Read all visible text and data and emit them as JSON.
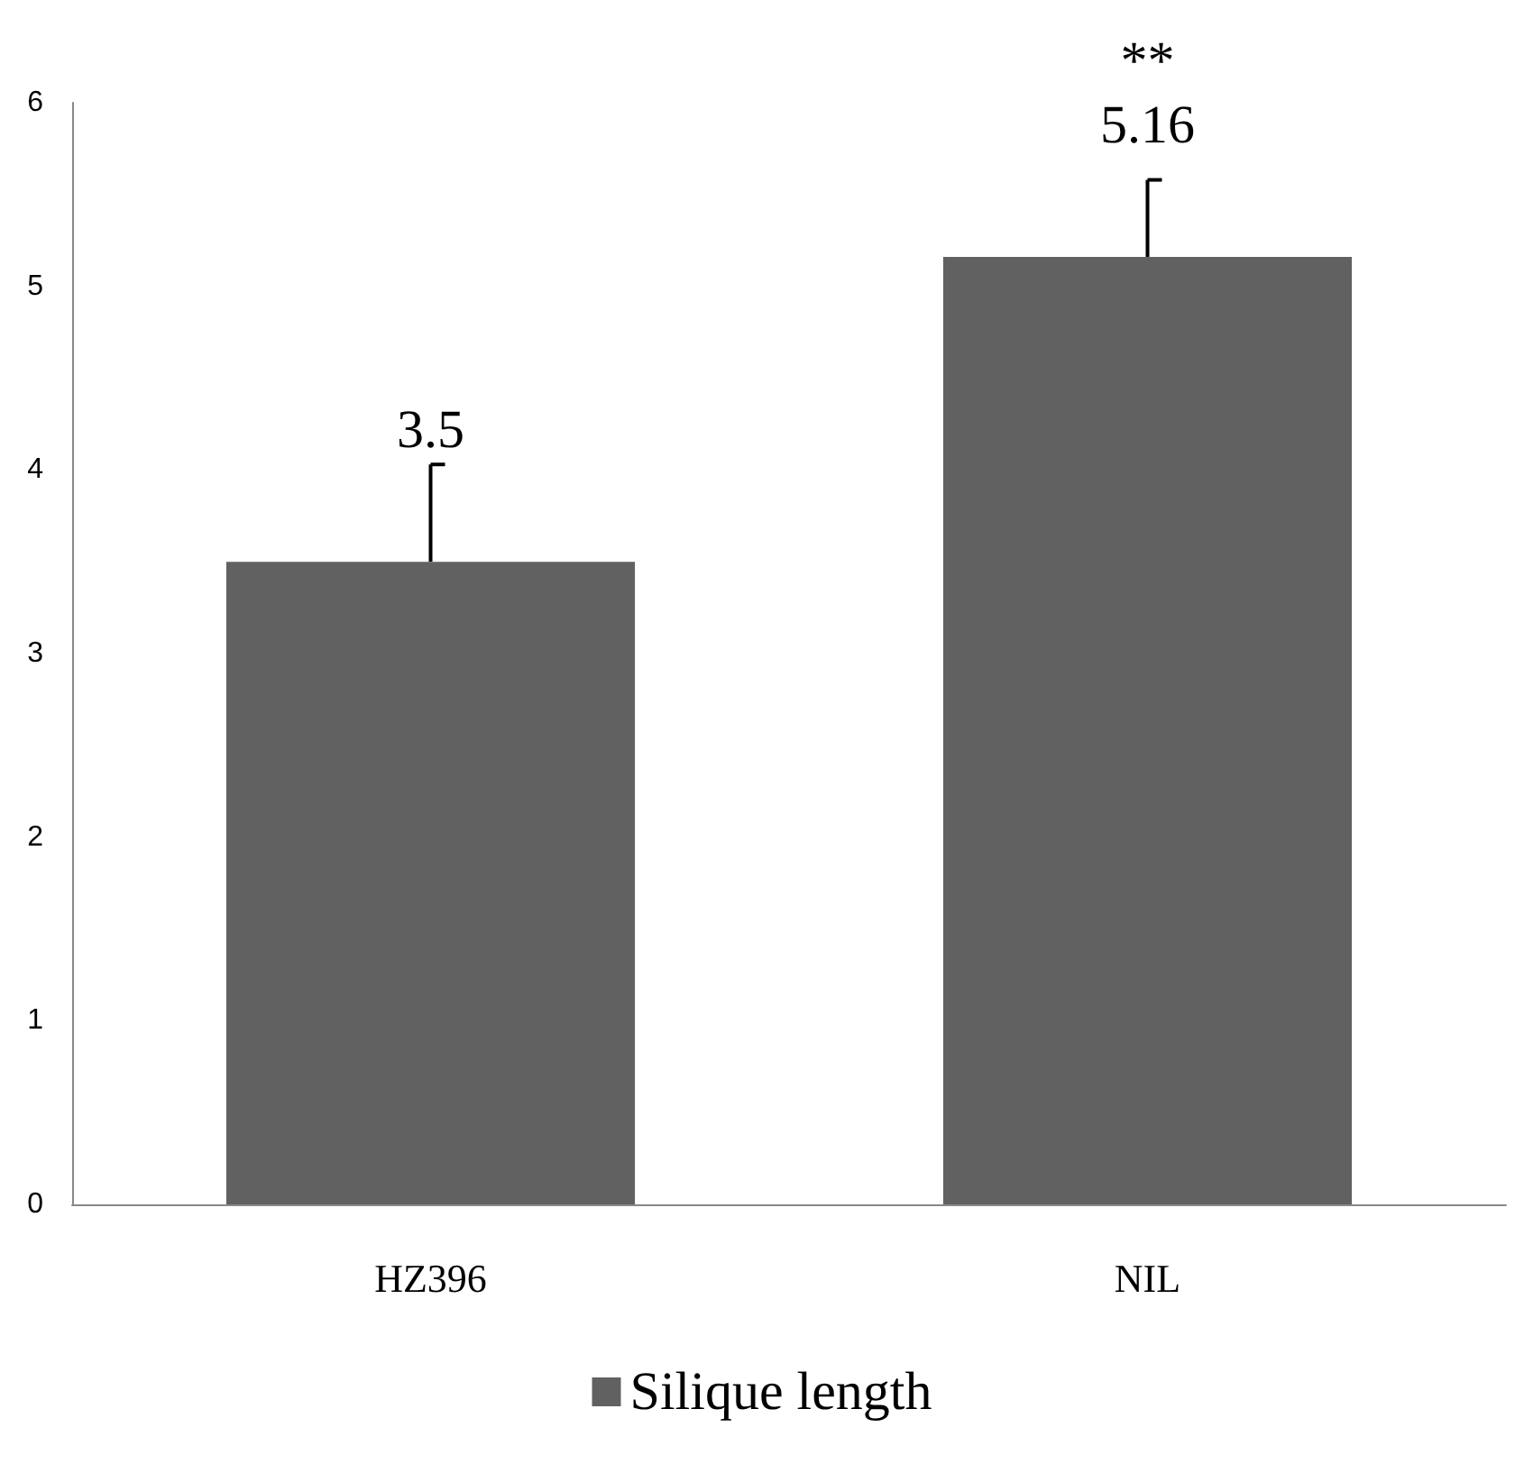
{
  "chart_data": {
    "type": "bar",
    "categories": [
      "HZ396",
      "NIL"
    ],
    "series": [
      {
        "name": "Silique length",
        "color": "#616161",
        "values": [
          3.5,
          5.16
        ],
        "errors": [
          [
            3.5,
            4.03
          ],
          [
            5.16,
            5.58
          ]
        ]
      }
    ],
    "ylim": [
      0,
      6
    ],
    "yticks": [
      0,
      1,
      2,
      3,
      4,
      5,
      6
    ],
    "grid": false,
    "legend": "bottom",
    "data_labels": true,
    "annotations": [
      {
        "text": "**",
        "x": "NIL",
        "y": 5.58
      }
    ]
  }
}
